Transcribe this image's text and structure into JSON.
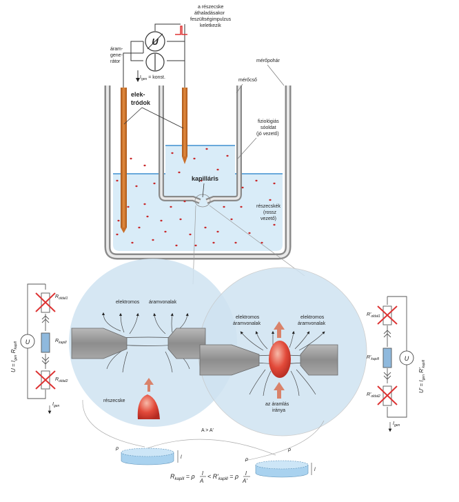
{
  "labels": {
    "pulse_note_1": "a részecske",
    "pulse_note_2": "áthaladásakor",
    "pulse_note_3": "feszültségimpulzus",
    "pulse_note_4": "keletkezik",
    "generator_1": "áram-",
    "generator_2": "gene-",
    "generator_3": "rátor",
    "igen_const": "I",
    "igen_const_sub": "gen",
    "igen_const_rest": " = konst.",
    "voltmeter_symbol": "U",
    "beaker": "mérőpohár",
    "tube": "mérőcső",
    "electrodes_1": "elek-",
    "electrodes_2": "tródok",
    "saline_1": "fiziológiás",
    "saline_2": "sóoldat",
    "saline_3": "(jó vezető)",
    "capillary": "kapilláris",
    "particles_1": "részecskék",
    "particles_2": "(rossz",
    "particles_3": "vezető)",
    "lines_left_1": "elektromos",
    "lines_left_2": "áramvonalak",
    "lines_right_1": "elektromos",
    "lines_right_2": "áramvonalak",
    "lines_mid_1": "elektromos",
    "lines_mid_2": "áramvonalak",
    "particle": "részecske",
    "flow_dir_1": "az áramlás",
    "flow_dir_2": "iránya",
    "area_compare": "A > A'",
    "left_formula": "U = I",
    "left_formula_sub1": "gen",
    "left_formula_r": " R",
    "left_formula_sub2": "kapill",
    "right_formula": "U' = I",
    "right_formula_sub1": "gen",
    "right_formula_r": " R'",
    "right_formula_sub2": "kapill",
    "r_oldal1": "R",
    "r_oldal1_sub": "oldal1",
    "r_kapill": "R",
    "r_kapill_sub": "kapill",
    "r_oldal2": "R",
    "r_oldal2_sub": "oldal2",
    "rp_oldal1": "R'",
    "rp_oldal1_sub": "oldal1",
    "rp_kapill": "R'",
    "rp_kapill_sub": "kapill",
    "rp_oldal2": "R'",
    "rp_oldal2_sub": "oldal2",
    "igen_left": "I",
    "igen_left_sub": "gen",
    "igen_right": "I",
    "igen_right_sub": "gen",
    "rho_left": "ρ",
    "rho_right": "ρ",
    "rho_right_top": "ρ",
    "l_left": "l",
    "l_right": "l",
    "bottom_formula": "R",
    "bottom_formula_sub1": "kapill",
    "bottom_formula_mid": " = ρ",
    "bottom_formula_l1": "l",
    "bottom_formula_a1": "A",
    "bottom_formula_lt": " < R'",
    "bottom_formula_sub2": "kapill",
    "bottom_formula_mid2": " = ρ",
    "bottom_formula_l2": "l",
    "bottom_formula_a2": "A'"
  },
  "colors": {
    "electrode": "#c96f2a",
    "liquid": "#d9ecf8",
    "liquid_line": "#3d8fd0",
    "particle_dot": "#c8282a",
    "zoom_circle": "#cfe3f1",
    "particle_body": "#e24a3a",
    "arrow": "#d9826a",
    "disk": "#a9d2ef"
  }
}
